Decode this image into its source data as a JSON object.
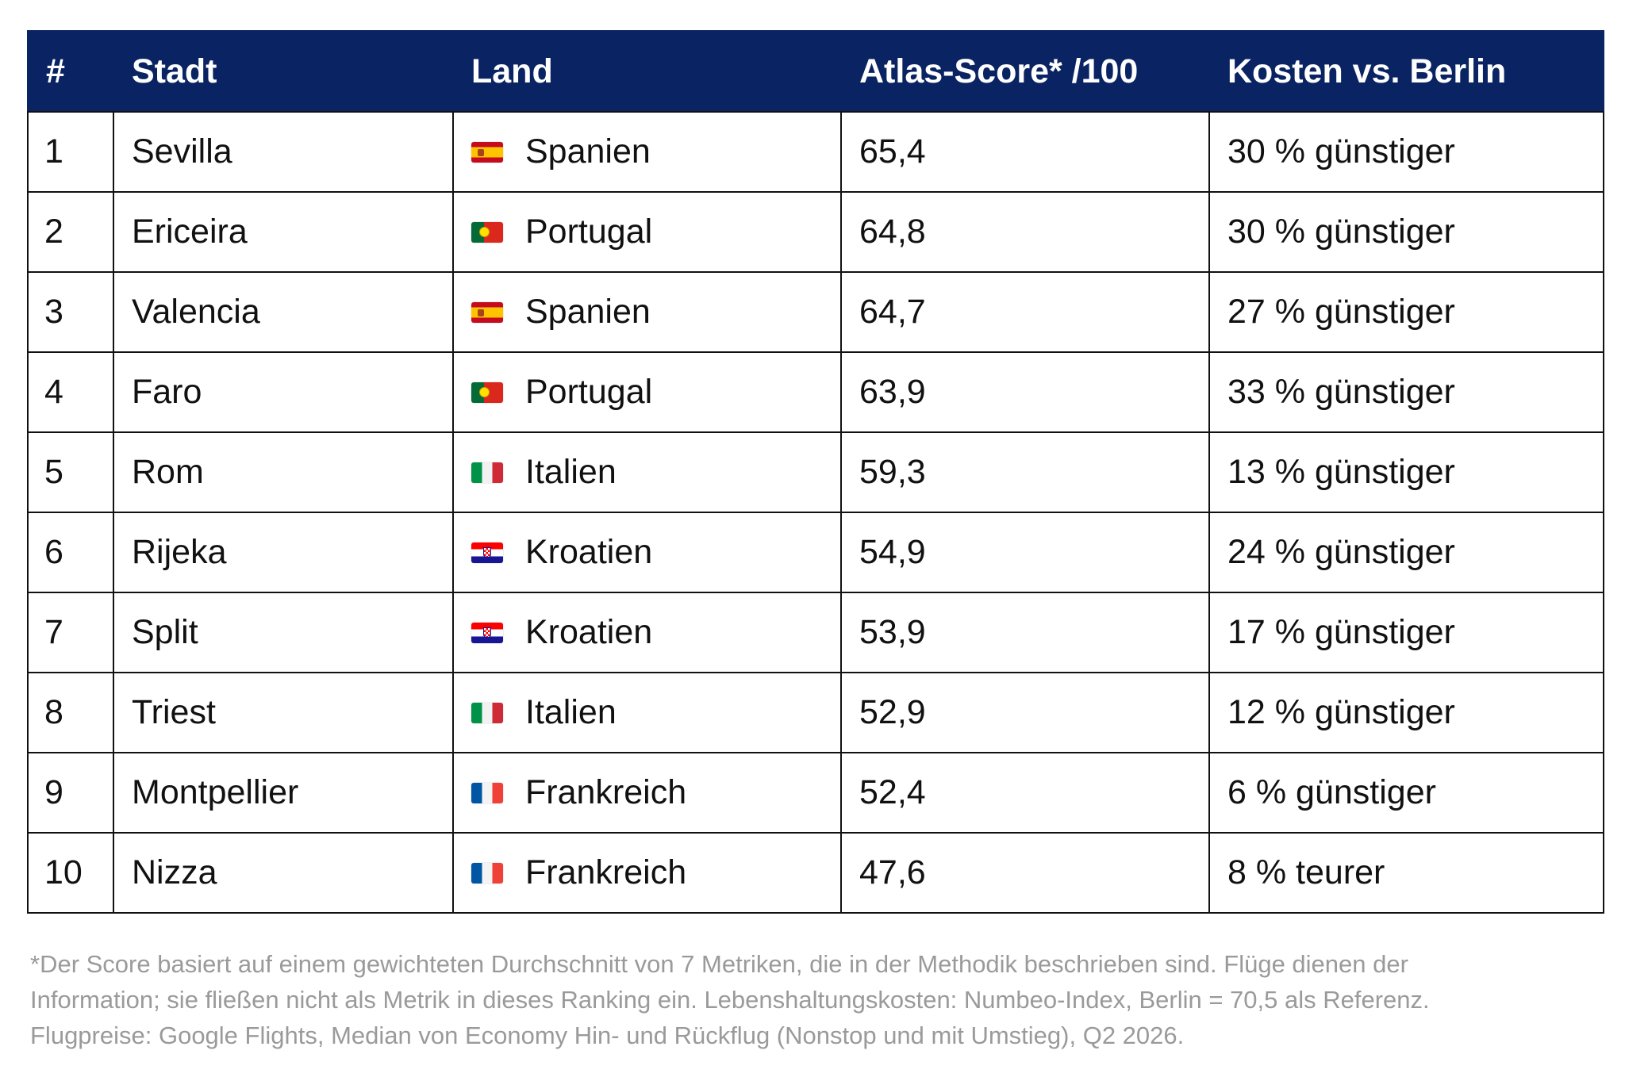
{
  "table": {
    "headers": [
      "#",
      "Stadt",
      "Land",
      "Atlas-Score* /100",
      "Kosten vs. Berlin"
    ],
    "rows": [
      {
        "rank": "1",
        "city": "Sevilla",
        "country": "Spanien",
        "flag": "spain-flag-icon",
        "score": "65,4",
        "cost": "30 % günstiger"
      },
      {
        "rank": "2",
        "city": "Ericeira",
        "country": "Portugal",
        "flag": "portugal-flag-icon",
        "score": "64,8",
        "cost": "30 % günstiger"
      },
      {
        "rank": "3",
        "city": "Valencia",
        "country": "Spanien",
        "flag": "spain-flag-icon",
        "score": "64,7",
        "cost": "27 % günstiger"
      },
      {
        "rank": "4",
        "city": "Faro",
        "country": "Portugal",
        "flag": "portugal-flag-icon",
        "score": "63,9",
        "cost": "33 % günstiger"
      },
      {
        "rank": "5",
        "city": "Rom",
        "country": "Italien",
        "flag": "italy-flag-icon",
        "score": "59,3",
        "cost": "13 % günstiger"
      },
      {
        "rank": "6",
        "city": "Rijeka",
        "country": "Kroatien",
        "flag": "croatia-flag-icon",
        "score": "54,9",
        "cost": "24 % günstiger"
      },
      {
        "rank": "7",
        "city": "Split",
        "country": "Kroatien",
        "flag": "croatia-flag-icon",
        "score": "53,9",
        "cost": "17 % günstiger"
      },
      {
        "rank": "8",
        "city": "Triest",
        "country": "Italien",
        "flag": "italy-flag-icon",
        "score": "52,9",
        "cost": "12 % günstiger"
      },
      {
        "rank": "9",
        "city": "Montpellier",
        "country": "Frankreich",
        "flag": "france-flag-icon",
        "score": "52,4",
        "cost": "6 % günstiger"
      },
      {
        "rank": "10",
        "city": "Nizza",
        "country": "Frankreich",
        "flag": "france-flag-icon",
        "score": "47,6",
        "cost": "8 % teurer"
      }
    ]
  },
  "colors": {
    "header_background": "#0a2463",
    "header_text": "#ffffff",
    "footnote_text": "#9a9a9a"
  },
  "footnote": {
    "line1": "*Der Score basiert auf einem gewichteten Durchschnitt von 7 Metriken, die in der Methodik beschrieben sind. Flüge dienen der",
    "line2": "Information; sie fließen nicht als Metrik in dieses Ranking ein. Lebenshaltungskosten: Numbeo-Index, Berlin = 70,5 als Referenz.",
    "line3": "Flugpreise: Google Flights, Median von Economy Hin- und Rückflug (Nonstop und mit Umstieg), Q2 2026."
  }
}
